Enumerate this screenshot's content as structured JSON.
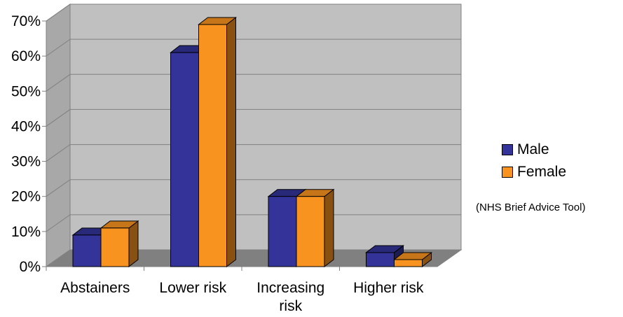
{
  "chart_data": {
    "type": "bar",
    "categories": [
      [
        "Abstainers"
      ],
      [
        "Lower risk"
      ],
      [
        "Increasing",
        "risk"
      ],
      [
        "Higher risk"
      ]
    ],
    "series": [
      {
        "name": "Male",
        "color": "#333399",
        "values": [
          9,
          61,
          20,
          4
        ]
      },
      {
        "name": "Female",
        "color": "#F7931E",
        "values": [
          11,
          69,
          20,
          2
        ]
      }
    ],
    "ylim": [
      0,
      70
    ],
    "yticks": [
      "0%",
      "10%",
      "20%",
      "30%",
      "40%",
      "50%",
      "60%",
      "70%"
    ],
    "grid": true,
    "legend": "right",
    "three_d": true
  },
  "note": "(NHS Brief Advice Tool)"
}
